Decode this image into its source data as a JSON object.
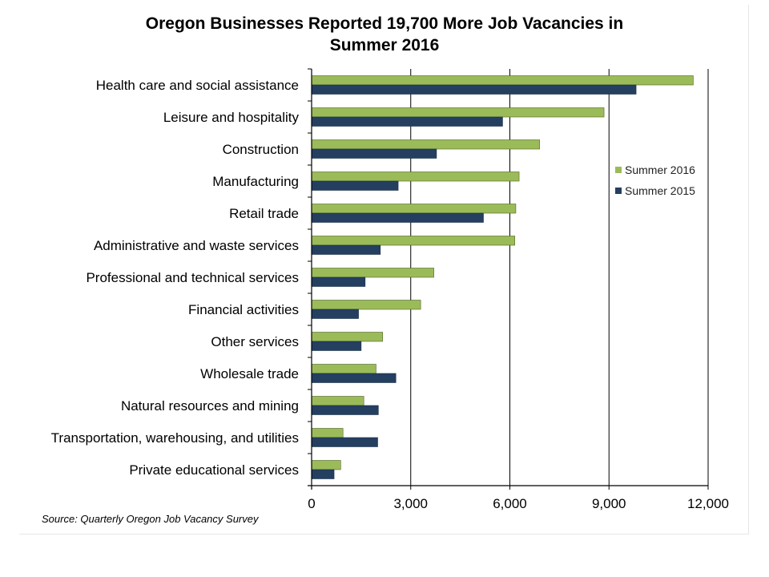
{
  "chart_data": {
    "type": "bar",
    "orientation": "horizontal",
    "title_lines": [
      "Oregon Businesses Reported 19,700 More Job Vacancies in",
      "Summer 2016"
    ],
    "categories": [
      "Health care and social assistance",
      "Leisure and hospitality",
      "Construction",
      "Manufacturing",
      "Retail trade",
      "Administrative and waste services",
      "Professional and technical services",
      "Financial activities",
      "Other services",
      "Wholesale trade",
      "Natural resources and mining",
      "Transportation, warehousing, and utilities",
      "Private educational services"
    ],
    "series": [
      {
        "name": "Summer 2016",
        "color": "#9bbb59",
        "values": [
          11550,
          8850,
          6900,
          6280,
          6180,
          6150,
          3700,
          3300,
          2150,
          1950,
          1580,
          950,
          880
        ]
      },
      {
        "name": "Summer 2015",
        "color": "#243f60",
        "values": [
          9820,
          5780,
          3780,
          2620,
          5200,
          2080,
          1620,
          1420,
          1500,
          2550,
          2020,
          2000,
          680
        ]
      }
    ],
    "xlim": [
      0,
      12000
    ],
    "xticks": [
      0,
      3000,
      6000,
      9000,
      12000
    ],
    "xtick_labels": [
      "0",
      "3,000",
      "6,000",
      "9,000",
      "12,000"
    ],
    "grid": "vertical major lines",
    "legend_position": "right",
    "source": "Source: Quarterly Oregon Job Vacancy Survey"
  }
}
